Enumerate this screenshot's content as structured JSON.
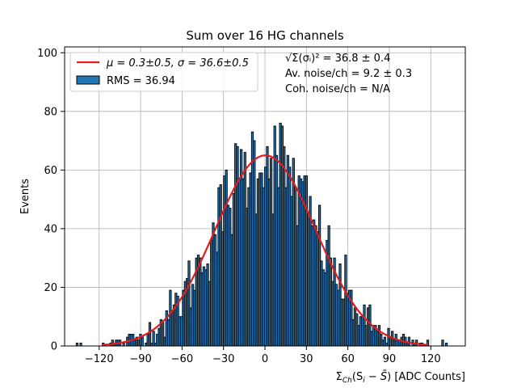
{
  "chart_data": {
    "type": "bar",
    "title": "Sum over 16 HG channels",
    "xlabel": "Σ_Ch(S_i − S̄) [ADC Counts]",
    "xlabel_parts": {
      "base": "Σ",
      "sub": "Ch",
      "rest": "(S",
      "sub_i": "i",
      "minus": " − ",
      "sbar": "S̄",
      "close": ") [ADC Counts]"
    },
    "ylabel": "Events",
    "xlim": [
      -145,
      145
    ],
    "ylim": [
      0,
      102
    ],
    "grid": true,
    "x_ticks": [
      -120,
      -90,
      -60,
      -30,
      0,
      30,
      60,
      90,
      120
    ],
    "x_tick_labels": [
      "−120",
      "−90",
      "−60",
      "−30",
      "0",
      "30",
      "60",
      "90",
      "120"
    ],
    "y_ticks": [
      0,
      20,
      40,
      60,
      80,
      100
    ],
    "y_tick_labels": [
      "0",
      "20",
      "40",
      "60",
      "80",
      "100"
    ],
    "histogram": {
      "name": "RMS = 36.94",
      "bin_width": 1.35,
      "bin_start": -138,
      "bin_end": 132,
      "color": "#1f77b4",
      "edge_color": "#000000"
    },
    "fit": {
      "name": "μ = 0.3±0.5, σ = 36.6±0.5",
      "mu": 0.3,
      "sigma": 36.6,
      "amplitude": 65,
      "color": "#e41a1c"
    },
    "legend": {
      "placement": "top-left",
      "entries": [
        {
          "label": "μ = 0.3±0.5, σ = 36.6±0.5",
          "kind": "line"
        },
        {
          "label": "RMS = 36.94",
          "kind": "patch"
        }
      ]
    },
    "annotations": [
      "√Σ(σᵢ)² = 36.8 ± 0.4",
      "Av. noise/ch  = 9.2 ± 0.3",
      "Coh. noise/ch = N/A"
    ]
  }
}
